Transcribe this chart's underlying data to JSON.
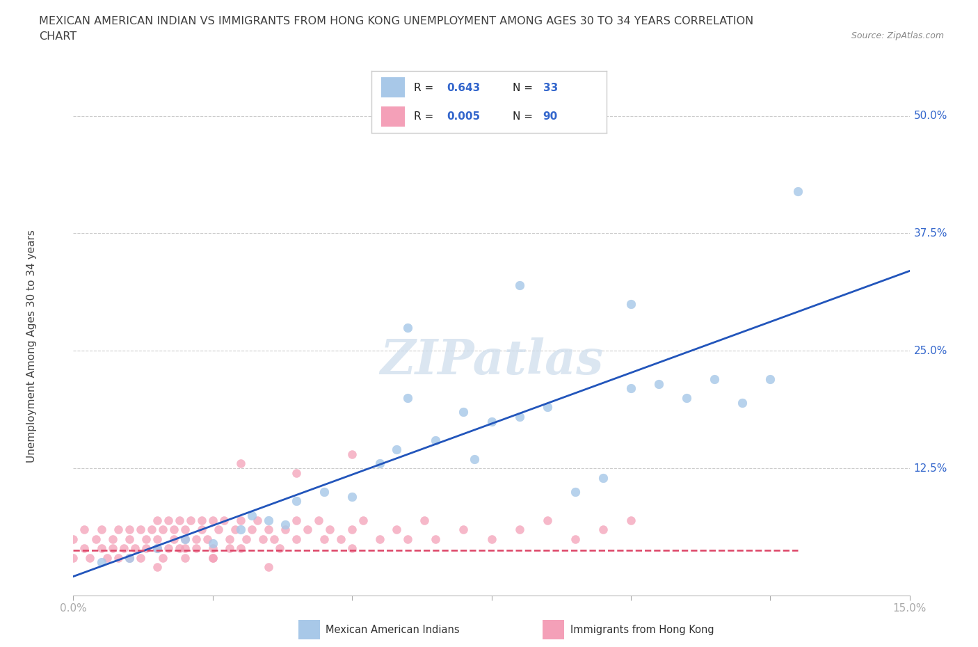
{
  "title_line1": "MEXICAN AMERICAN INDIAN VS IMMIGRANTS FROM HONG KONG UNEMPLOYMENT AMONG AGES 30 TO 34 YEARS CORRELATION",
  "title_line2": "CHART",
  "source_text": "Source: ZipAtlas.com",
  "ylabel": "Unemployment Among Ages 30 to 34 years",
  "xlim": [
    0.0,
    0.15
  ],
  "ylim": [
    -0.01,
    0.52
  ],
  "blue_R": "0.643",
  "blue_N": "33",
  "pink_R": "0.005",
  "pink_N": "90",
  "blue_scatter_x": [
    0.005,
    0.01,
    0.015,
    0.02,
    0.025,
    0.03,
    0.032,
    0.035,
    0.038,
    0.04,
    0.045,
    0.05,
    0.055,
    0.058,
    0.06,
    0.065,
    0.07,
    0.072,
    0.075,
    0.08,
    0.085,
    0.09,
    0.095,
    0.1,
    0.105,
    0.11,
    0.115,
    0.12,
    0.125,
    0.13,
    0.06,
    0.08,
    0.1
  ],
  "blue_scatter_y": [
    0.025,
    0.03,
    0.04,
    0.05,
    0.045,
    0.06,
    0.075,
    0.07,
    0.065,
    0.09,
    0.1,
    0.095,
    0.13,
    0.145,
    0.2,
    0.155,
    0.185,
    0.135,
    0.175,
    0.18,
    0.19,
    0.1,
    0.115,
    0.21,
    0.215,
    0.2,
    0.22,
    0.195,
    0.22,
    0.42,
    0.275,
    0.32,
    0.3
  ],
  "pink_scatter_x": [
    0.0,
    0.0,
    0.002,
    0.002,
    0.003,
    0.004,
    0.005,
    0.005,
    0.006,
    0.007,
    0.007,
    0.008,
    0.008,
    0.009,
    0.01,
    0.01,
    0.01,
    0.011,
    0.012,
    0.012,
    0.013,
    0.013,
    0.014,
    0.015,
    0.015,
    0.015,
    0.016,
    0.016,
    0.017,
    0.017,
    0.018,
    0.018,
    0.019,
    0.019,
    0.02,
    0.02,
    0.02,
    0.021,
    0.022,
    0.022,
    0.023,
    0.023,
    0.024,
    0.025,
    0.025,
    0.025,
    0.026,
    0.027,
    0.028,
    0.028,
    0.029,
    0.03,
    0.03,
    0.031,
    0.032,
    0.033,
    0.034,
    0.035,
    0.036,
    0.037,
    0.038,
    0.04,
    0.04,
    0.042,
    0.044,
    0.045,
    0.046,
    0.048,
    0.05,
    0.05,
    0.052,
    0.055,
    0.058,
    0.06,
    0.063,
    0.065,
    0.07,
    0.075,
    0.08,
    0.085,
    0.09,
    0.095,
    0.1,
    0.03,
    0.04,
    0.05,
    0.025,
    0.035,
    0.015,
    0.02
  ],
  "pink_scatter_y": [
    0.03,
    0.05,
    0.04,
    0.06,
    0.03,
    0.05,
    0.04,
    0.06,
    0.03,
    0.05,
    0.04,
    0.03,
    0.06,
    0.04,
    0.05,
    0.03,
    0.06,
    0.04,
    0.03,
    0.06,
    0.05,
    0.04,
    0.06,
    0.04,
    0.05,
    0.07,
    0.03,
    0.06,
    0.04,
    0.07,
    0.05,
    0.06,
    0.04,
    0.07,
    0.05,
    0.06,
    0.04,
    0.07,
    0.05,
    0.04,
    0.06,
    0.07,
    0.05,
    0.04,
    0.07,
    0.03,
    0.06,
    0.07,
    0.05,
    0.04,
    0.06,
    0.04,
    0.07,
    0.05,
    0.06,
    0.07,
    0.05,
    0.06,
    0.05,
    0.04,
    0.06,
    0.05,
    0.07,
    0.06,
    0.07,
    0.05,
    0.06,
    0.05,
    0.06,
    0.04,
    0.07,
    0.05,
    0.06,
    0.05,
    0.07,
    0.05,
    0.06,
    0.05,
    0.06,
    0.07,
    0.05,
    0.06,
    0.07,
    0.13,
    0.12,
    0.14,
    0.03,
    0.02,
    0.02,
    0.03
  ],
  "blue_line_x": [
    0.0,
    0.15
  ],
  "blue_line_y": [
    0.01,
    0.335
  ],
  "pink_line_x": [
    0.0,
    0.13
  ],
  "pink_line_y": [
    0.038,
    0.038
  ],
  "scatter_blue_color": "#a8c8e8",
  "scatter_pink_color": "#f4a0b8",
  "line_blue_color": "#2255bb",
  "line_pink_color": "#dd4466",
  "watermark_color": "#ccdcec",
  "background_color": "#ffffff",
  "grid_color": "#cccccc",
  "tick_label_color": "#3366cc",
  "title_color": "#404040",
  "legend_text_color": "#222222"
}
